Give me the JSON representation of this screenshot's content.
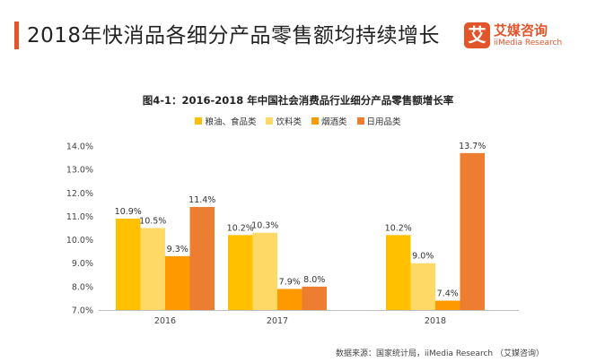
{
  "header": {
    "title": "2018年快消品各细分产品零售额均持续增长",
    "accent_color": "#e2552b"
  },
  "logo": {
    "icon": "ai-logo-icon",
    "mark": "艾",
    "name_cn": "艾媒咨询",
    "name_en": "iiMedia Research"
  },
  "chart_data": {
    "type": "bar",
    "title": "图4-1：2016-2018 年中国社会消费品行业细分产品零售额增长率",
    "xlabel": "",
    "ylabel": "",
    "categories": [
      "2016",
      "2017",
      "2018"
    ],
    "y_ticks": [
      "7.0%",
      "8.0%",
      "9.0%",
      "10.0%",
      "11.0%",
      "12.0%",
      "13.0%",
      "14.0%"
    ],
    "ylim": [
      7.0,
      14.0
    ],
    "grid": false,
    "legend_position": "top",
    "series": [
      {
        "name": "粮油、食品类",
        "color": "#ffc000",
        "values": [
          10.9,
          10.2,
          10.2
        ],
        "labels": [
          "10.9%",
          "10.2%",
          "10.2%"
        ]
      },
      {
        "name": "饮料类",
        "color": "#ffd966",
        "values": [
          10.5,
          10.3,
          9.0
        ],
        "labels": [
          "10.5%",
          "10.3%",
          "9.0%"
        ]
      },
      {
        "name": "烟酒类",
        "color": "#ff9900",
        "values": [
          9.3,
          7.9,
          7.4
        ],
        "labels": [
          "9.3%",
          "7.9%",
          "7.4%"
        ]
      },
      {
        "name": "日用品类",
        "color": "#ed7d31",
        "values": [
          11.4,
          8.0,
          13.7
        ],
        "labels": [
          "11.4%",
          "8.0%",
          "13.7%"
        ]
      }
    ]
  },
  "footer": {
    "source": "数据来源：国家统计局，iiMedia Research （艾媒咨询）"
  }
}
